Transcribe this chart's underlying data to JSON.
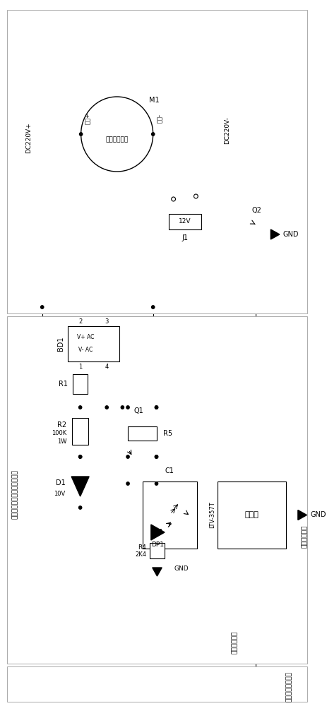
{
  "bg": "#ffffff",
  "lc": "#000000",
  "gray": "#aaaaaa",
  "lw": 0.8,
  "labels": {
    "DC220Vp": "DC220V+",
    "DC220Vm": "DC220V-",
    "mp": "电机+",
    "mm": "电机-",
    "mname": "高压直流电机",
    "mlabel": "M1",
    "BD1": "BD1",
    "vp_ac": "V+ AC",
    "vm_ac": "V- AC",
    "p2": "2",
    "p3": "3",
    "p1": "1",
    "p4": "4",
    "R1": "R1",
    "R2": "R2",
    "R2v": "100K",
    "R2w": "1W",
    "Q1": "Q1",
    "R5": "R5",
    "C1": "C1",
    "D1": "D1",
    "D1v": "10V",
    "DP1": "DP1",
    "R4": "R4",
    "R4v": "2K4",
    "GND": "GND",
    "LTV": "LTV-357T",
    "proc": "处理器",
    "drv": "负极驱动信号",
    "dctrl": "泤放控制信号",
    "mctrl": "电机启停控制信号",
    "prot": "反向电动势主动浄放保护电路",
    "J1": "J1",
    "12V": "12V",
    "Q2": "Q2"
  }
}
